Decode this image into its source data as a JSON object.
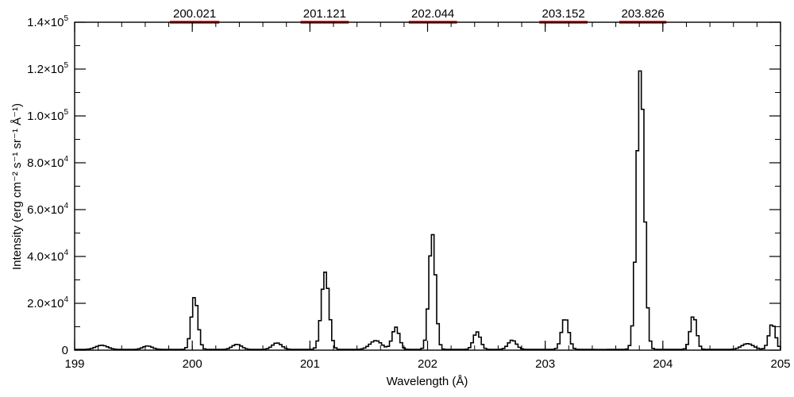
{
  "chart_data": {
    "type": "line",
    "style": "step",
    "title": "",
    "xlabel": "Wavelength (Å)",
    "ylabel": "Intensity (erg cm⁻² s⁻¹ sr⁻¹ Å⁻¹)",
    "xlim": [
      199,
      205
    ],
    "ylim": [
      0,
      140000
    ],
    "grid": false,
    "legend": "none",
    "line_color": "#000000",
    "band_color": "#ff0000",
    "x_ticks": [
      {
        "value": 199,
        "label": "199"
      },
      {
        "value": 200,
        "label": "200"
      },
      {
        "value": 201,
        "label": "201"
      },
      {
        "value": 202,
        "label": "202"
      },
      {
        "value": 203,
        "label": "203"
      },
      {
        "value": 204,
        "label": "204"
      },
      {
        "value": 205,
        "label": "205"
      }
    ],
    "y_ticks": [
      {
        "value": 0,
        "mantissa": "0",
        "exp": ""
      },
      {
        "value": 20000,
        "mantissa": "2.0×10",
        "exp": "4"
      },
      {
        "value": 40000,
        "mantissa": "4.0×10",
        "exp": "4"
      },
      {
        "value": 60000,
        "mantissa": "6.0×10",
        "exp": "4"
      },
      {
        "value": 80000,
        "mantissa": "8.0×10",
        "exp": "4"
      },
      {
        "value": 100000,
        "mantissa": "1.0×10",
        "exp": "5"
      },
      {
        "value": 120000,
        "mantissa": "1.2×10",
        "exp": "5"
      },
      {
        "value": 140000,
        "mantissa": "1.4×10",
        "exp": "5"
      }
    ],
    "bands": [
      {
        "label": "200.021",
        "start": 199.81,
        "end": 200.23
      },
      {
        "label": "201.121",
        "start": 200.92,
        "end": 201.33
      },
      {
        "label": "202.044",
        "start": 201.84,
        "end": 202.25
      },
      {
        "label": "203.152",
        "start": 202.95,
        "end": 203.36
      },
      {
        "label": "203.826",
        "start": 203.63,
        "end": 204.03
      }
    ],
    "baseline": 300,
    "peaks": [
      {
        "center": 199.23,
        "amp": 1800,
        "width": 0.05
      },
      {
        "center": 199.62,
        "amp": 1500,
        "width": 0.04
      },
      {
        "center": 200.02,
        "amp": 22500,
        "width": 0.028
      },
      {
        "center": 200.38,
        "amp": 2200,
        "width": 0.04
      },
      {
        "center": 200.72,
        "amp": 2800,
        "width": 0.04
      },
      {
        "center": 201.13,
        "amp": 33000,
        "width": 0.032
      },
      {
        "center": 201.56,
        "amp": 3800,
        "width": 0.05
      },
      {
        "center": 201.73,
        "amp": 9500,
        "width": 0.03
      },
      {
        "center": 202.04,
        "amp": 49500,
        "width": 0.028
      },
      {
        "center": 202.42,
        "amp": 7500,
        "width": 0.03
      },
      {
        "center": 202.72,
        "amp": 4000,
        "width": 0.035
      },
      {
        "center": 203.17,
        "amp": 13500,
        "width": 0.03
      },
      {
        "center": 203.81,
        "amp": 120000,
        "width": 0.032
      },
      {
        "center": 204.26,
        "amp": 14500,
        "width": 0.027
      },
      {
        "center": 204.72,
        "amp": 2500,
        "width": 0.05
      },
      {
        "center": 204.93,
        "amp": 11000,
        "width": 0.028
      }
    ],
    "step": 0.0223
  }
}
